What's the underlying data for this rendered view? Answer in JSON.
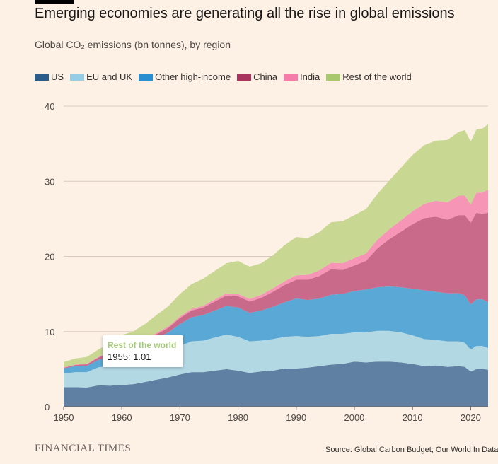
{
  "title": "Emerging economies are generating all the rise in global emissions",
  "subtitle": "Global CO₂ emissions (bn tonnes), by region",
  "brand": "FINANCIAL TIMES",
  "source": "Source: Global Carbon Budget; Our World In Data",
  "tooltip": {
    "series": "Rest of the world",
    "label": "1955: 1.01"
  },
  "chart_data": {
    "type": "area",
    "stacked": true,
    "title": "Emerging economies are generating all the rise in global emissions",
    "ylabel": "Global CO₂ emissions (bn tonnes), by region",
    "xlim": [
      1950,
      2023
    ],
    "ylim": [
      0,
      40
    ],
    "xticks": [
      1950,
      1960,
      1970,
      1980,
      1990,
      2000,
      2010,
      2020
    ],
    "yticks": [
      0,
      10,
      20,
      30,
      40
    ],
    "grid": "horizontal",
    "legend_position": "top",
    "x": [
      1950,
      1952,
      1954,
      1956,
      1958,
      1960,
      1962,
      1964,
      1966,
      1968,
      1970,
      1972,
      1974,
      1976,
      1978,
      1980,
      1982,
      1984,
      1986,
      1988,
      1990,
      1992,
      1994,
      1996,
      1998,
      2000,
      2002,
      2004,
      2006,
      2008,
      2010,
      2012,
      2014,
      2016,
      2018,
      2019,
      2020,
      2021,
      2022,
      2023
    ],
    "series": [
      {
        "name": "US",
        "color": "#5f7fa3",
        "values": [
          2.6,
          2.6,
          2.55,
          2.85,
          2.8,
          2.9,
          3.0,
          3.3,
          3.6,
          3.9,
          4.3,
          4.6,
          4.6,
          4.8,
          5.0,
          4.8,
          4.5,
          4.7,
          4.8,
          5.1,
          5.1,
          5.2,
          5.4,
          5.6,
          5.7,
          6.0,
          5.9,
          6.0,
          6.0,
          5.9,
          5.7,
          5.4,
          5.5,
          5.3,
          5.4,
          5.3,
          4.7,
          5.0,
          5.1,
          4.9
        ]
      },
      {
        "name": "EU and UK",
        "color": "#b2d8e3",
        "values": [
          1.8,
          2.0,
          2.05,
          2.4,
          2.6,
          2.8,
          3.0,
          3.1,
          3.3,
          3.5,
          3.8,
          4.1,
          4.2,
          4.4,
          4.6,
          4.5,
          4.2,
          4.1,
          4.2,
          4.2,
          4.3,
          4.1,
          4.0,
          4.1,
          4.0,
          3.9,
          4.0,
          4.1,
          4.1,
          4.0,
          3.8,
          3.6,
          3.4,
          3.4,
          3.3,
          3.2,
          2.9,
          3.1,
          3.0,
          2.9
        ]
      },
      {
        "name": "Other high-income",
        "color": "#5aa8d6",
        "values": [
          0.7,
          0.8,
          0.85,
          1.0,
          1.2,
          1.4,
          1.6,
          1.9,
          2.2,
          2.5,
          2.9,
          3.2,
          3.4,
          3.6,
          3.8,
          3.9,
          3.8,
          4.0,
          4.3,
          4.6,
          5.0,
          4.9,
          5.0,
          5.2,
          5.3,
          5.5,
          5.7,
          5.8,
          5.9,
          6.0,
          6.2,
          6.5,
          6.4,
          6.4,
          6.4,
          6.3,
          6.0,
          6.2,
          6.2,
          6.1
        ]
      },
      {
        "name": "China",
        "color": "#c96a8a",
        "values": [
          0.08,
          0.15,
          0.2,
          0.3,
          0.55,
          0.8,
          0.5,
          0.45,
          0.55,
          0.6,
          0.8,
          0.9,
          1.0,
          1.2,
          1.4,
          1.5,
          1.5,
          1.7,
          2.0,
          2.3,
          2.5,
          2.7,
          3.0,
          3.4,
          3.2,
          3.4,
          3.8,
          5.2,
          6.3,
          7.4,
          8.6,
          9.6,
          10.0,
          9.8,
          10.4,
          10.7,
          10.9,
          11.5,
          11.4,
          11.9
        ]
      },
      {
        "name": "India",
        "color": "#f695b5",
        "values": [
          0.06,
          0.06,
          0.07,
          0.08,
          0.09,
          0.11,
          0.13,
          0.15,
          0.17,
          0.18,
          0.2,
          0.22,
          0.24,
          0.27,
          0.3,
          0.3,
          0.34,
          0.4,
          0.45,
          0.5,
          0.58,
          0.65,
          0.75,
          0.85,
          0.9,
          0.98,
          1.0,
          1.15,
          1.3,
          1.5,
          1.7,
          1.9,
          2.1,
          2.3,
          2.6,
          2.6,
          2.4,
          2.7,
          2.8,
          3.1
        ]
      },
      {
        "name": "Rest of the world",
        "color": "#c8d893",
        "values": [
          0.7,
          0.8,
          0.9,
          1.01,
          1.2,
          1.5,
          1.8,
          2.1,
          2.4,
          2.7,
          3.0,
          3.3,
          3.6,
          3.8,
          4.0,
          4.4,
          4.3,
          4.2,
          4.4,
          4.8,
          5.1,
          4.9,
          5.1,
          5.4,
          5.6,
          5.7,
          5.9,
          6.1,
          6.5,
          7.0,
          7.5,
          7.8,
          8.0,
          8.3,
          8.5,
          8.7,
          8.4,
          8.4,
          8.5,
          8.7
        ]
      }
    ]
  }
}
